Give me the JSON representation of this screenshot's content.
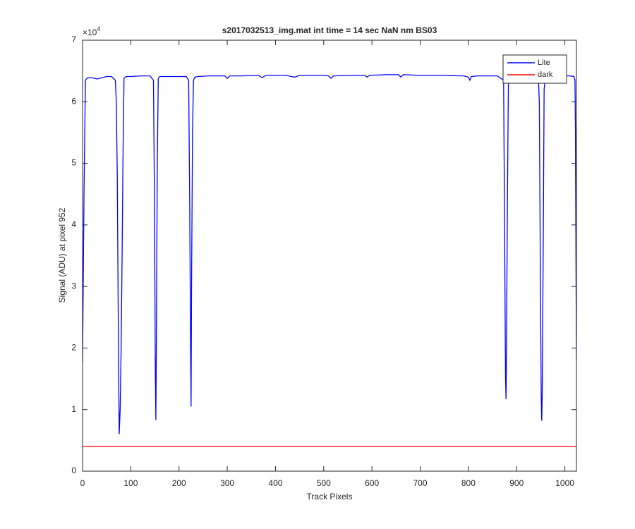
{
  "chart_data": {
    "type": "line",
    "title": "s2017032513_img.mat int time = 14 sec  NaN nm BS03",
    "x_label": "Track Pixels",
    "y_label": "Signal (ADU) at pixel 952",
    "y_exponent": {
      "base": "×10",
      "power": "4"
    },
    "xlim": [
      0,
      1024
    ],
    "xticks": [
      0,
      100,
      200,
      300,
      400,
      500,
      600,
      700,
      800,
      900,
      1000
    ],
    "ylim": [
      0,
      70000
    ],
    "yticks": [
      {
        "value": 0,
        "label": "0"
      },
      {
        "value": 10000,
        "label": "1"
      },
      {
        "value": 20000,
        "label": "2"
      },
      {
        "value": 30000,
        "label": "3"
      },
      {
        "value": 40000,
        "label": "4"
      },
      {
        "value": 50000,
        "label": "5"
      },
      {
        "value": 60000,
        "label": "6"
      },
      {
        "value": 70000,
        "label": "7"
      }
    ],
    "grid": false,
    "legend": "northeast",
    "series": [
      {
        "name": "Lite",
        "color": "#0000ff",
        "x": [
          0,
          3,
          6,
          10,
          20,
          30,
          40,
          50,
          60,
          68,
          70,
          72,
          74,
          76,
          78,
          80,
          82,
          84,
          86,
          90,
          100,
          120,
          140,
          147,
          149,
          151,
          152,
          153,
          155,
          157,
          160,
          180,
          200,
          215,
          220,
          222,
          224,
          225,
          226,
          228,
          230,
          233,
          240,
          260,
          280,
          295,
          300,
          305,
          330,
          365,
          372,
          380,
          420,
          440,
          450,
          500,
          510,
          515,
          520,
          560,
          585,
          590,
          595,
          630,
          655,
          660,
          665,
          700,
          740,
          790,
          800,
          803,
          806,
          820,
          860,
          873,
          875,
          877,
          878,
          879,
          881,
          883,
          900,
          930,
          945,
          947,
          949,
          951,
          952,
          953,
          955,
          957,
          960,
          990,
          1010,
          1019,
          1021,
          1022,
          1023,
          1024
        ],
        "values": [
          17500,
          45000,
          63500,
          63900,
          63900,
          63700,
          63900,
          64100,
          64100,
          63500,
          60000,
          48000,
          25000,
          6000,
          10000,
          20000,
          35000,
          52000,
          63800,
          64100,
          64100,
          64200,
          64200,
          63500,
          45000,
          15000,
          8300,
          20000,
          50000,
          63800,
          64100,
          64100,
          64100,
          64100,
          63500,
          45000,
          20000,
          10500,
          30000,
          55000,
          63500,
          64000,
          64100,
          64200,
          64200,
          64200,
          63800,
          64200,
          64200,
          64300,
          63900,
          64300,
          64300,
          64000,
          64300,
          64300,
          64200,
          63800,
          64200,
          64300,
          64300,
          64000,
          64300,
          64400,
          64400,
          64000,
          64400,
          64300,
          64300,
          64200,
          64000,
          63500,
          64100,
          64200,
          64200,
          63500,
          40000,
          15000,
          11700,
          20000,
          45000,
          64000,
          64200,
          64200,
          64200,
          60000,
          35000,
          12000,
          8200,
          12000,
          35000,
          62000,
          64200,
          64200,
          64200,
          64100,
          63500,
          55000,
          35000,
          18000
        ]
      },
      {
        "name": "dark",
        "color": "#ff0000",
        "x": [
          0,
          1024
        ],
        "values": [
          4000,
          4000
        ]
      }
    ]
  }
}
